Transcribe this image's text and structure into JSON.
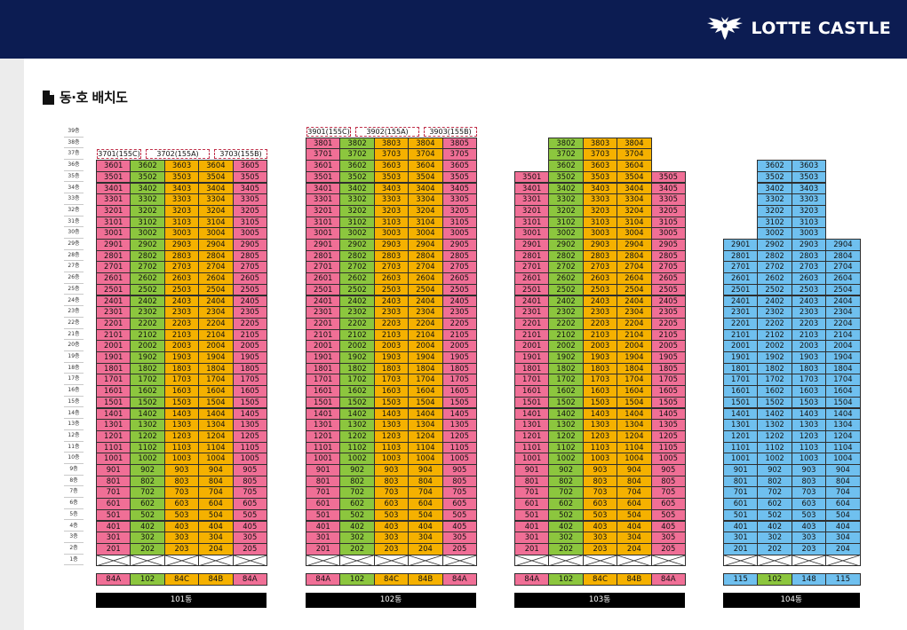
{
  "brand": {
    "name": "LOTTE CASTLE"
  },
  "section": {
    "title": "동·호 배치도"
  },
  "floor_suffix": "층",
  "colors": {
    "pink": "#f06f96",
    "green": "#8cc63e",
    "yellow": "#f5b100",
    "blue": "#6fc0ef"
  },
  "buildings": [
    {
      "label": "101동",
      "top_floor": 36,
      "line_suffixes": [
        "01",
        "02",
        "03",
        "04",
        "05"
      ],
      "line_colors": [
        "pink",
        "green",
        "yellow",
        "yellow",
        "pink"
      ],
      "types": [
        "84A",
        "102",
        "84C",
        "84B",
        "84A"
      ],
      "header_units": [
        {
          "label": "3701(155C)"
        },
        {
          "label": "3702(155A)"
        },
        {
          "label": "3703(155B)"
        }
      ]
    },
    {
      "label": "102동",
      "top_floor": 38,
      "line_suffixes": [
        "01",
        "02",
        "03",
        "04",
        "05"
      ],
      "line_colors": [
        "pink",
        "green",
        "yellow",
        "yellow",
        "pink"
      ],
      "types": [
        "84A",
        "102",
        "84C",
        "84B",
        "84A"
      ],
      "header_units": [
        {
          "label": "3901(155C)"
        },
        {
          "label": "3902(155A)"
        },
        {
          "label": "3903(155B)"
        }
      ]
    },
    {
      "label": "103동",
      "top_floor": 35,
      "line_suffixes": [
        "01",
        "02",
        "03",
        "04",
        "05"
      ],
      "line_colors": [
        "pink",
        "green",
        "yellow",
        "yellow",
        "pink"
      ],
      "types": [
        "84A",
        "102",
        "84C",
        "84B",
        "84A"
      ],
      "extra_floors": [
        {
          "floor": 38,
          "lines": [
            "02",
            "03",
            "04"
          ]
        },
        {
          "floor": 37,
          "lines": [
            "02",
            "03",
            "04"
          ]
        },
        {
          "floor": 36,
          "lines": [
            "02",
            "03",
            "04"
          ]
        }
      ]
    },
    {
      "label": "104동",
      "top_floor": 29,
      "line_suffixes": [
        "01",
        "02",
        "03",
        "04"
      ],
      "line_colors": [
        "blue",
        "blue",
        "blue",
        "blue"
      ],
      "types": [
        "115",
        "102",
        "148",
        "115"
      ],
      "type_colors": [
        "blue",
        "green",
        "blue",
        "blue"
      ],
      "extra_floors": [
        {
          "floor": 36,
          "lines": [
            "02",
            "03"
          ]
        },
        {
          "floor": 35,
          "lines": [
            "02",
            "03"
          ]
        },
        {
          "floor": 34,
          "lines": [
            "02",
            "03"
          ]
        },
        {
          "floor": 33,
          "lines": [
            "02",
            "03"
          ]
        },
        {
          "floor": 32,
          "lines": [
            "02",
            "03"
          ]
        },
        {
          "floor": 31,
          "lines": [
            "02",
            "03"
          ]
        },
        {
          "floor": 30,
          "lines": [
            "02",
            "03"
          ]
        }
      ]
    }
  ]
}
